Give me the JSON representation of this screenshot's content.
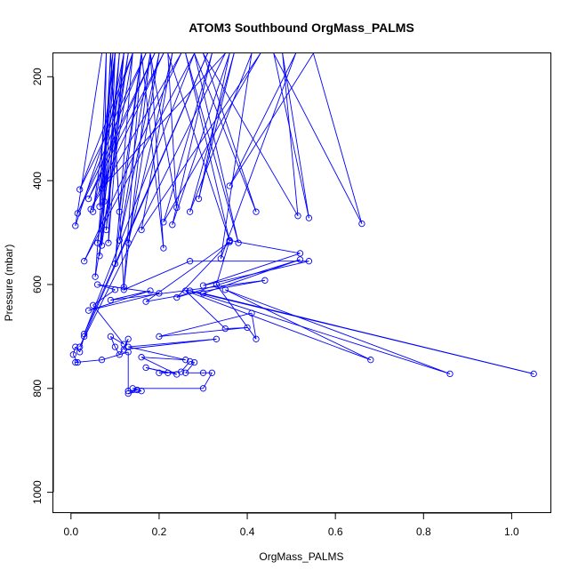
{
  "chart_data": {
    "type": "line",
    "title": "ATOM3 Southbound OrgMass_PALMS",
    "xlabel": "OrgMass_PALMS",
    "ylabel": "Pressure (mbar)",
    "xlim": [
      -0.04,
      1.09
    ],
    "ylim": [
      1040,
      155
    ],
    "y_reversed": true,
    "grid": false,
    "legend": "none",
    "series_color": "#0000ff",
    "x_ticks": [
      0.0,
      0.2,
      0.4,
      0.6,
      0.8,
      1.0
    ],
    "x_tick_labels": [
      "0.0",
      "0.2",
      "0.4",
      "0.6",
      "0.8",
      "1.0"
    ],
    "y_ticks": [
      200,
      400,
      600,
      800,
      1000
    ],
    "y_tick_labels": [
      "200",
      "400",
      "600",
      "800",
      "1000"
    ],
    "profile": [
      [
        0.07,
        155
      ],
      [
        0.01,
        487
      ],
      [
        0.14,
        155
      ],
      [
        0.02,
        417
      ],
      [
        0.17,
        155
      ],
      [
        0.015,
        463
      ],
      [
        0.19,
        155
      ],
      [
        0.04,
        435
      ],
      [
        0.21,
        155
      ],
      [
        0.045,
        455
      ],
      [
        0.25,
        155
      ],
      [
        0.03,
        555
      ],
      [
        0.28,
        155
      ],
      [
        0.03,
        695
      ],
      [
        0.31,
        155
      ],
      [
        0.02,
        720
      ],
      [
        0.35,
        155
      ],
      [
        0.07,
        415
      ],
      [
        0.1,
        155
      ],
      [
        0.05,
        460
      ],
      [
        0.12,
        155
      ],
      [
        0.06,
        520
      ],
      [
        0.13,
        155
      ],
      [
        0.07,
        525
      ],
      [
        0.09,
        155
      ],
      [
        0.065,
        545
      ],
      [
        0.11,
        155
      ],
      [
        0.08,
        495
      ],
      [
        0.12,
        155
      ],
      [
        0.085,
        520
      ],
      [
        0.1,
        155
      ],
      [
        0.075,
        440
      ],
      [
        0.08,
        155
      ],
      [
        0.065,
        450
      ],
      [
        0.095,
        155
      ],
      [
        0.055,
        585
      ],
      [
        0.14,
        155
      ],
      [
        0.1,
        560
      ],
      [
        0.16,
        155
      ],
      [
        0.12,
        605
      ],
      [
        0.18,
        155
      ],
      [
        0.11,
        515
      ],
      [
        0.2,
        155
      ],
      [
        0.13,
        520
      ],
      [
        0.23,
        155
      ],
      [
        0.16,
        495
      ],
      [
        0.43,
        155
      ],
      [
        0.21,
        480
      ],
      [
        0.32,
        155
      ],
      [
        0.23,
        485
      ],
      [
        0.36,
        155
      ],
      [
        0.29,
        435
      ],
      [
        0.37,
        155
      ],
      [
        0.27,
        460
      ],
      [
        0.41,
        155
      ],
      [
        0.34,
        550
      ],
      [
        0.51,
        155
      ],
      [
        0.36,
        410
      ],
      [
        0.55,
        155
      ],
      [
        0.66,
        483
      ],
      [
        0.46,
        155
      ],
      [
        0.54,
        472
      ],
      [
        0.48,
        155
      ],
      [
        0.515,
        468
      ],
      [
        0.3,
        155
      ],
      [
        0.42,
        460
      ],
      [
        0.28,
        155
      ],
      [
        0.38,
        520
      ],
      [
        0.26,
        155
      ],
      [
        0.36,
        516
      ],
      [
        0.22,
        155
      ],
      [
        0.24,
        452
      ],
      [
        0.18,
        155
      ],
      [
        0.21,
        530
      ],
      [
        0.16,
        155
      ],
      [
        0.11,
        460
      ],
      [
        0.09,
        155
      ],
      [
        0.12,
        610
      ],
      [
        0.27,
        555
      ],
      [
        0.54,
        555
      ],
      [
        0.3,
        602
      ],
      [
        0.52,
        540
      ],
      [
        0.36,
        515
      ],
      [
        0.33,
        600
      ],
      [
        0.42,
        705
      ],
      [
        0.41,
        655
      ],
      [
        0.2,
        700
      ],
      [
        0.4,
        683
      ],
      [
        0.35,
        685
      ],
      [
        0.26,
        612
      ],
      [
        0.68,
        745
      ],
      [
        0.35,
        610
      ],
      [
        0.86,
        772
      ],
      [
        0.27,
        612
      ],
      [
        1.05,
        772
      ],
      [
        0.3,
        617
      ],
      [
        0.52,
        552
      ],
      [
        0.24,
        625
      ],
      [
        0.36,
        518
      ],
      [
        0.17,
        633
      ],
      [
        0.44,
        592
      ],
      [
        0.09,
        630
      ],
      [
        0.18,
        612
      ],
      [
        0.04,
        650
      ],
      [
        0.2,
        617
      ],
      [
        0.06,
        600
      ],
      [
        0.1,
        610
      ],
      [
        0.05,
        640
      ],
      [
        0.12,
        715
      ],
      [
        0.09,
        700
      ],
      [
        0.1,
        720
      ],
      [
        0.11,
        735
      ],
      [
        0.13,
        705
      ],
      [
        0.12,
        725
      ],
      [
        0.33,
        705
      ],
      [
        0.13,
        720
      ],
      [
        0.26,
        745
      ],
      [
        0.16,
        740
      ],
      [
        0.24,
        773
      ],
      [
        0.17,
        760
      ],
      [
        0.22,
        770
      ],
      [
        0.2,
        770
      ],
      [
        0.25,
        768
      ],
      [
        0.27,
        748
      ],
      [
        0.28,
        750
      ],
      [
        0.26,
        770
      ],
      [
        0.3,
        770
      ],
      [
        0.32,
        770
      ],
      [
        0.3,
        800
      ],
      [
        0.14,
        800
      ],
      [
        0.16,
        805
      ],
      [
        0.13,
        810
      ],
      [
        0.15,
        803
      ],
      [
        0.13,
        805
      ],
      [
        0.13,
        730
      ],
      [
        0.07,
        745
      ],
      [
        0.01,
        750
      ],
      [
        0.015,
        750
      ],
      [
        0.005,
        735
      ],
      [
        0.01,
        720
      ],
      [
        0.02,
        730
      ],
      [
        0.03,
        700
      ]
    ]
  }
}
